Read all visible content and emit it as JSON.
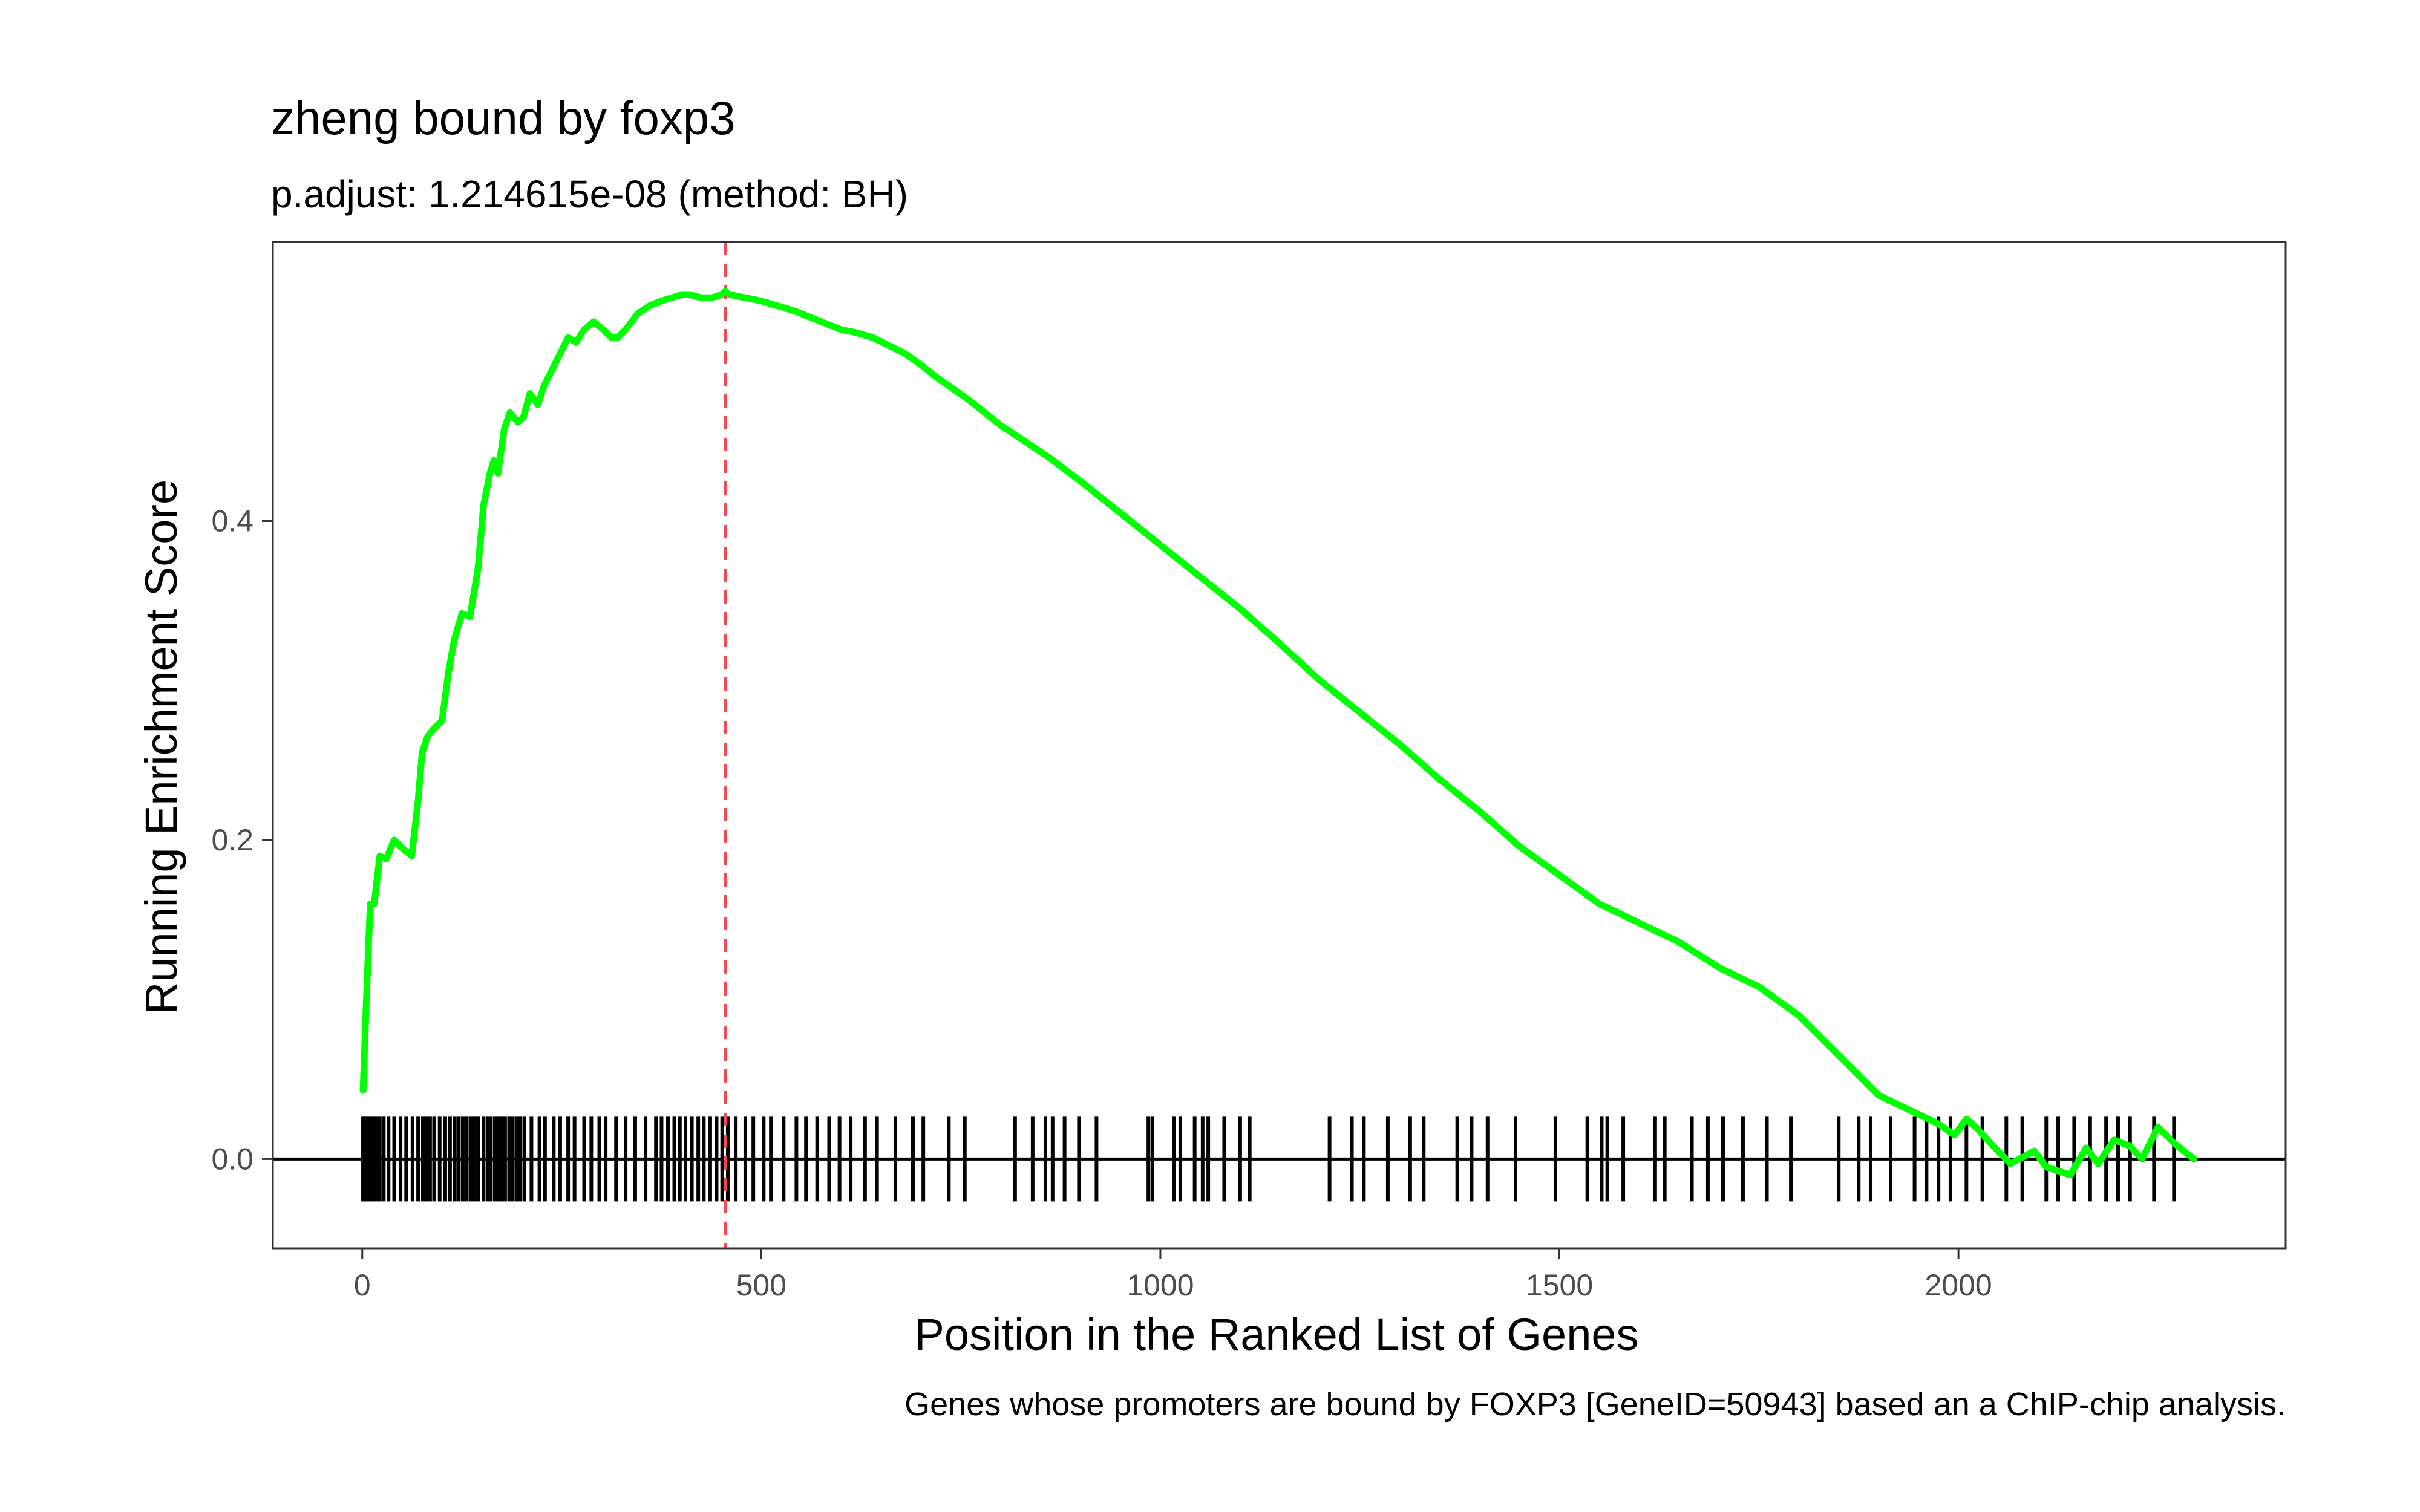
{
  "chart_data": {
    "type": "line",
    "title": "zheng bound by foxp3",
    "subtitle": "p.adjust: 1.214615e-08 (method: BH)",
    "xlabel": "Position in the Ranked List of Genes",
    "ylabel": "Running Enrichment Score",
    "caption": "Genes whose promoters are bound by FOXP3 [GeneID=50943] based an a ChIP-chip analysis.",
    "xlim": [
      -112,
      2410
    ],
    "ylim": [
      -0.056,
      0.575
    ],
    "x_ticks": [
      0,
      500,
      1000,
      1500,
      2000
    ],
    "x_tick_labels": [
      "0",
      "500",
      "1000",
      "1500",
      "2000"
    ],
    "y_ticks": [
      0.0,
      0.2,
      0.4
    ],
    "y_tick_labels": [
      "0.0",
      "0.2",
      "0.4"
    ],
    "grid": false,
    "series": [
      {
        "color": "#00ff00",
        "x": [
          1,
          5,
          10,
          15,
          22,
          30,
          40,
          50,
          62,
          70,
          75,
          82,
          90,
          100,
          108,
          115,
          125,
          135,
          145,
          152,
          160,
          165,
          170,
          178,
          185,
          190,
          195,
          202,
          210,
          220,
          228,
          238,
          248,
          258,
          268,
          278,
          290,
          302,
          312,
          320,
          330,
          345,
          360,
          375,
          388,
          400,
          410,
          425,
          438,
          450,
          455,
          460,
          480,
          500,
          520,
          540,
          560,
          580,
          600,
          620,
          640,
          660,
          680,
          700,
          720,
          740,
          760,
          780,
          800,
          830,
          860,
          900,
          950,
          1000,
          1050,
          1100,
          1150,
          1200,
          1250,
          1300,
          1350,
          1400,
          1450,
          1500,
          1550,
          1600,
          1650,
          1700,
          1750,
          1800,
          1850,
          1900,
          1950,
          1975,
          1995,
          2010,
          2022,
          2040,
          2065,
          2095,
          2110,
          2140,
          2160,
          2175,
          2195,
          2215,
          2230,
          2250,
          2270,
          2295
        ],
        "y": [
          0.043,
          0.097,
          0.16,
          0.16,
          0.19,
          0.188,
          0.2,
          0.195,
          0.19,
          0.225,
          0.255,
          0.265,
          0.27,
          0.275,
          0.305,
          0.325,
          0.342,
          0.34,
          0.37,
          0.41,
          0.43,
          0.438,
          0.43,
          0.458,
          0.468,
          0.465,
          0.462,
          0.465,
          0.48,
          0.473,
          0.485,
          0.495,
          0.505,
          0.515,
          0.512,
          0.52,
          0.525,
          0.52,
          0.515,
          0.515,
          0.52,
          0.53,
          0.535,
          0.538,
          0.54,
          0.542,
          0.542,
          0.54,
          0.54,
          0.542,
          0.544,
          0.542,
          0.54,
          0.538,
          0.535,
          0.532,
          0.528,
          0.524,
          0.52,
          0.518,
          0.515,
          0.51,
          0.505,
          0.498,
          0.49,
          0.483,
          0.476,
          0.468,
          0.46,
          0.45,
          0.44,
          0.425,
          0.405,
          0.385,
          0.365,
          0.345,
          0.323,
          0.3,
          0.28,
          0.26,
          0.238,
          0.218,
          0.196,
          0.178,
          0.16,
          0.148,
          0.136,
          0.12,
          0.108,
          0.09,
          0.065,
          0.04,
          0.028,
          0.022,
          0.015,
          0.025,
          0.02,
          0.01,
          -0.003,
          0.005,
          -0.005,
          -0.01,
          0.007,
          -0.003,
          0.012,
          0.008,
          0.0,
          0.02,
          0.01,
          0.0
        ]
      }
    ],
    "max_line": {
      "x": 455,
      "color": "#ee4b57",
      "style": "dashed"
    },
    "zero_line": {
      "y": 0.0,
      "color": "#000000"
    },
    "hits": [
      1,
      3,
      6,
      9,
      12,
      15,
      18,
      22,
      27,
      33,
      40,
      48,
      55,
      63,
      70,
      76,
      80,
      85,
      90,
      97,
      104,
      110,
      116,
      121,
      126,
      131,
      136,
      140,
      145,
      152,
      157,
      161,
      166,
      170,
      175,
      179,
      184,
      188,
      193,
      198,
      203,
      212,
      222,
      229,
      240,
      248,
      258,
      266,
      278,
      287,
      297,
      305,
      318,
      330,
      342,
      355,
      368,
      375,
      383,
      391,
      398,
      405,
      413,
      421,
      428,
      436,
      444,
      451,
      458,
      468,
      480,
      490,
      503,
      512,
      528,
      544,
      556,
      570,
      585,
      598,
      612,
      630,
      645,
      668,
      690,
      703,
      735,
      755,
      818,
      840,
      856,
      865,
      880,
      898,
      920,
      985,
      990,
      1017,
      1025,
      1043,
      1053,
      1060,
      1080,
      1100,
      1112,
      1212,
      1240,
      1255,
      1285,
      1313,
      1330,
      1372,
      1390,
      1410,
      1445,
      1495,
      1535,
      1553,
      1560,
      1580,
      1620,
      1632,
      1666,
      1686,
      1705,
      1730,
      1760,
      1790,
      1850,
      1875,
      1890,
      1915,
      1945,
      1960,
      1975,
      1990,
      2010,
      2030,
      2060,
      2080,
      2110,
      2125,
      2145,
      2165,
      2185,
      2200,
      2215,
      2245,
      2270
    ]
  }
}
